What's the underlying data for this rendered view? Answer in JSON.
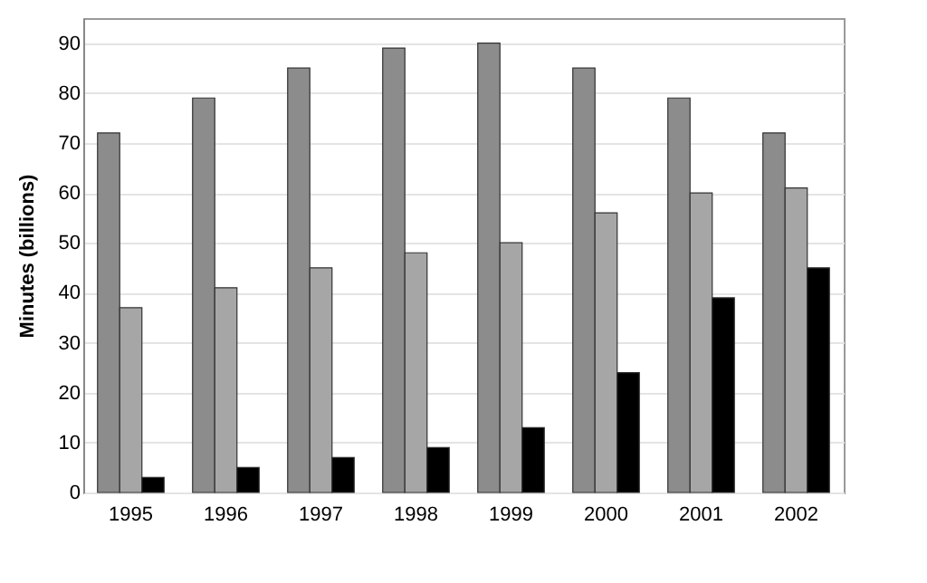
{
  "chart_data": {
    "type": "bar",
    "ylabel": "Minutes (billions)",
    "categories": [
      "1995",
      "1996",
      "1997",
      "1998",
      "1999",
      "2000",
      "2001",
      "2002"
    ],
    "series": [
      {
        "color": "#8c8c8c",
        "values": [
          72,
          79,
          85,
          89,
          90,
          85,
          79,
          72
        ]
      },
      {
        "color": "#a6a6a6",
        "values": [
          37,
          41,
          45,
          48,
          50,
          56,
          60,
          61
        ]
      },
      {
        "color": "#000000",
        "values": [
          3,
          5,
          7,
          9,
          13,
          24,
          39,
          45
        ]
      }
    ],
    "ylim": [
      0,
      95
    ],
    "yticks": [
      0,
      10,
      20,
      30,
      40,
      50,
      60,
      70,
      80,
      90
    ],
    "grid": "y",
    "legend": false
  }
}
